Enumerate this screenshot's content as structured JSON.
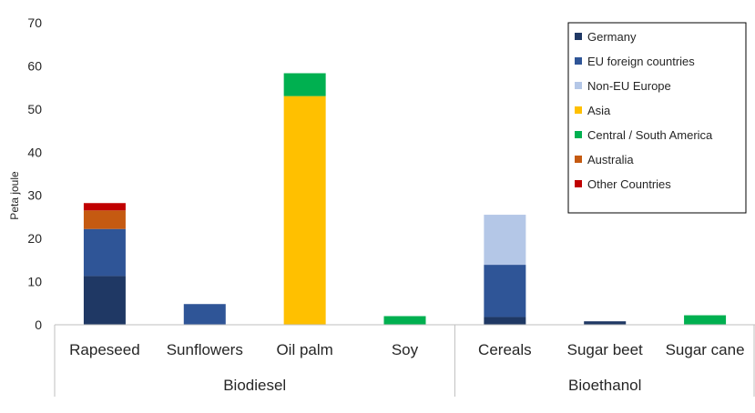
{
  "chart_data": {
    "type": "bar",
    "stacked": true,
    "ylabel": "Peta joule",
    "ylim": [
      0,
      70
    ],
    "yticks": [
      0,
      10,
      20,
      30,
      40,
      50,
      60,
      70
    ],
    "grid": false,
    "legend_position": "top-right",
    "categories": [
      "Rapeseed",
      "Sunflowers",
      "Oil palm",
      "Soy",
      "Cereals",
      "Sugar beet",
      "Sugar cane"
    ],
    "groups": [
      {
        "label": "Biodiesel",
        "categories": [
          "Rapeseed",
          "Sunflowers",
          "Oil palm",
          "Soy"
        ]
      },
      {
        "label": "Bioethanol",
        "categories": [
          "Cereals",
          "Sugar beet",
          "Sugar cane"
        ]
      }
    ],
    "series": [
      {
        "name": "Germany",
        "color": "#1f3864",
        "values": [
          11.3,
          0,
          0,
          0,
          1.8,
          0.8,
          0
        ]
      },
      {
        "name": "EU foreign countries",
        "color": "#2f5597",
        "values": [
          10.9,
          4.8,
          0,
          0,
          12.1,
          0,
          0
        ]
      },
      {
        "name": "Non-EU Europe",
        "color": "#b4c7e7",
        "values": [
          0,
          0,
          0,
          0,
          11.6,
          0,
          0
        ]
      },
      {
        "name": "Asia",
        "color": "#ffc000",
        "values": [
          0,
          0,
          53.0,
          0,
          0,
          0,
          0
        ]
      },
      {
        "name": "Central / South America",
        "color": "#00b050",
        "values": [
          0,
          0,
          5.3,
          2.0,
          0,
          0,
          2.2
        ]
      },
      {
        "name": "Australia",
        "color": "#c55a11",
        "values": [
          4.3,
          0,
          0,
          0,
          0,
          0,
          0
        ]
      },
      {
        "name": "Other Countries",
        "color": "#c00000",
        "values": [
          1.7,
          0,
          0,
          0,
          0,
          0,
          0
        ]
      }
    ]
  }
}
